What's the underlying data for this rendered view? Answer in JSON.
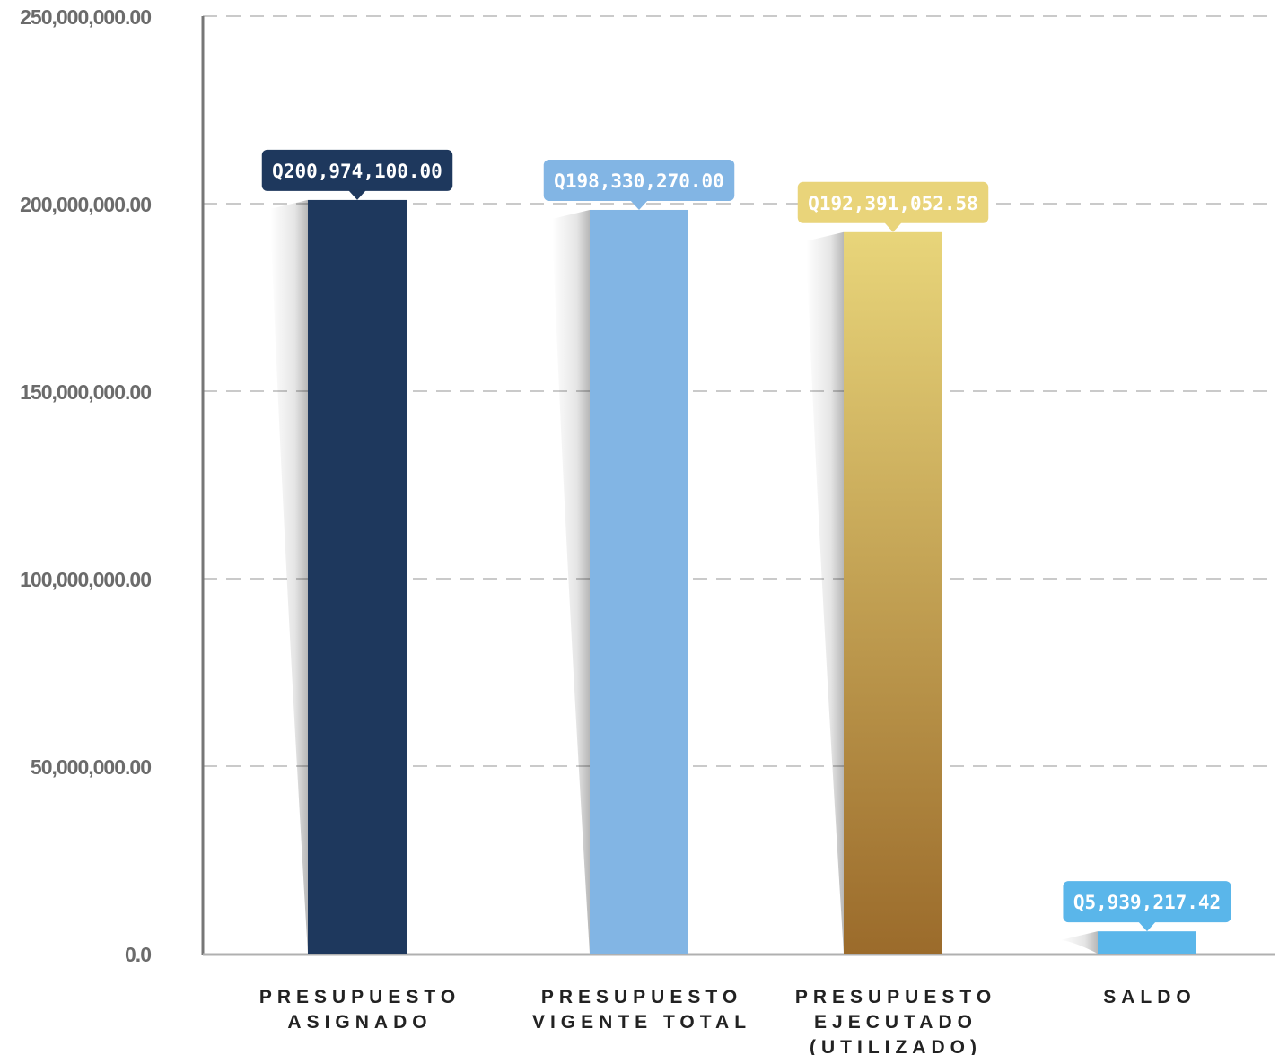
{
  "chart_data": {
    "type": "bar",
    "categories": [
      [
        "PRESUPUESTO",
        "ASIGNADO"
      ],
      [
        "PRESUPUESTO",
        "VIGENTE TOTAL"
      ],
      [
        "PRESUPUESTO",
        "EJECUTADO",
        "(UTILIZADO)"
      ],
      [
        "SALDO"
      ]
    ],
    "values": [
      200974100.0,
      198330270.0,
      192391052.58,
      5939217.42
    ],
    "data_labels": [
      "Q200,974,100.00",
      "Q198,330,270.00",
      "Q192,391,052.58",
      "Q5,939,217.42"
    ],
    "yticks": [
      {
        "value": 0,
        "label": "0.0"
      },
      {
        "value": 50000000,
        "label": "50,000,000.00"
      },
      {
        "value": 100000000,
        "label": "100,000,000.00"
      },
      {
        "value": 150000000,
        "label": "150,000,000.00"
      },
      {
        "value": 200000000,
        "label": "200,000,000.00"
      },
      {
        "value": 250000000,
        "label": "250,000,000.00"
      }
    ],
    "ylim": [
      0,
      250000000
    ],
    "title": "",
    "xlabel": "",
    "ylabel": "",
    "grid": true,
    "grid_style": "dashed",
    "colors": {
      "bars": [
        "#1e385d",
        "#82b5e4",
        "gold-gradient",
        "#5ab6ea"
      ],
      "bubbles": [
        "#1e385d",
        "#82b5e4",
        "#e9d47a",
        "#5ab6ea"
      ],
      "gold_top": "#e8d57a",
      "gold_bottom": "#9b6b2b",
      "axis": "#777777",
      "grid": "#b8b8b8"
    }
  }
}
